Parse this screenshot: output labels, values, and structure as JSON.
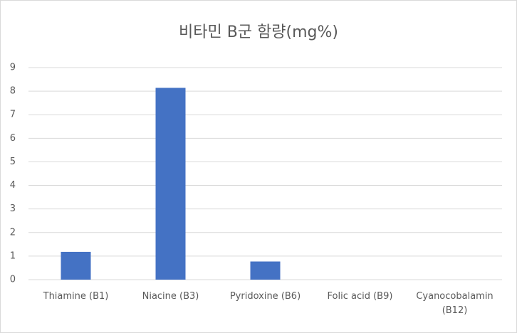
{
  "chart_data": {
    "type": "bar",
    "title": "비타민 B군 함량(mg%)",
    "categories": [
      "Thiamine (B1)",
      "Niacine (B3)",
      "Pyridoxine (B6)",
      "Folic acid (B9)",
      "Cyanocobalamin (B12)"
    ],
    "values": [
      1.18,
      8.14,
      0.77,
      0,
      0
    ],
    "color": "#4472c4",
    "ylim": [
      0,
      9
    ],
    "yticks": [
      0,
      1,
      2,
      3,
      4,
      5,
      6,
      7,
      8,
      9
    ],
    "grid": true
  }
}
